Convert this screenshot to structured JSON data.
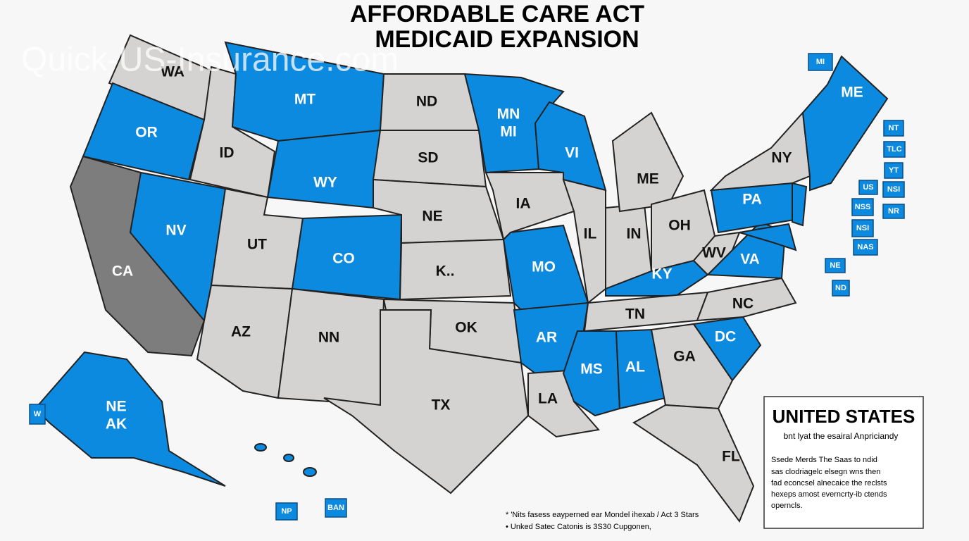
{
  "title": [
    "AFFORDABLE CARE ACT",
    "MEDICAID EXPANSION"
  ],
  "watermark": "Quick-US-Insurance.com",
  "states": [
    "WA",
    "OR",
    "CA",
    "ID",
    "NV",
    "MT",
    "WY",
    "UT",
    "CO",
    "AZ",
    "NN",
    "ND",
    "SD",
    "NE",
    "K..",
    "OK",
    "TX",
    "MN\nMI",
    "IA",
    "MO",
    "AR",
    "LA",
    "VI",
    "IL",
    "IN",
    "ME",
    "OH",
    "KY",
    "TN",
    "MS",
    "AL",
    "GA",
    "FL",
    "DC",
    "NC",
    "VA",
    "WV",
    "PA",
    "NY",
    "ME",
    "NE\nAK"
  ],
  "side_labels": [
    "MI",
    "NT",
    "TLC",
    "YT",
    "US",
    "NSI",
    "NR",
    "NSS",
    "NSI",
    "NAS",
    "NE",
    "ND",
    "W",
    "NP",
    "BAN"
  ],
  "legend": {
    "title": "UNITED STATES",
    "subtitle": "bnt lyat the esairal Anpriciandy",
    "body": [
      "Ssede Merds The Saas to ndid",
      "sas clodriagelc elsegn wns then",
      "fad econcsel alnecaice the reclsts",
      "hexeps amost everncrty-ib ctends",
      "operncls."
    ]
  },
  "footnotes": [
    "* 'Nits fasess eayperned ear Mondel ihexab / Act 3 Stars",
    "• Unked Satec Catonis is 3S30 Cupgonen,"
  ]
}
